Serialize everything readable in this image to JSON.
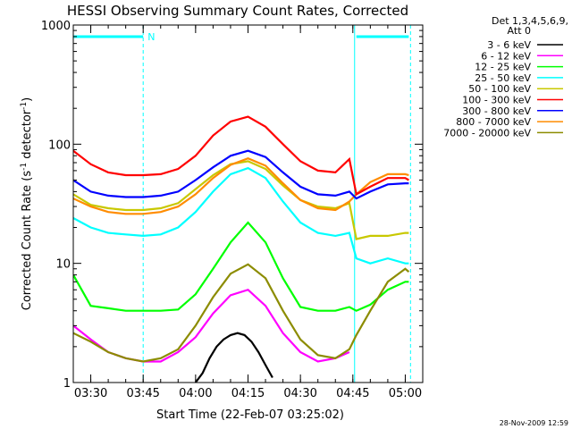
{
  "chart_data": {
    "type": "line",
    "title": "HESSI Observing Summary Count Rates, Corrected",
    "xlabel": "Start Time (22-Feb-07 03:25:02)",
    "ylabel": "Corrected Count Rate (s⁻¹ detector⁻¹)",
    "ylabel_parts": {
      "base": "Corrected Count Rate (s",
      "sup1": "-1",
      "mid": " detector",
      "sup2": "-1",
      "end": ")"
    },
    "yscale": "log",
    "ylim": [
      1,
      1000
    ],
    "xlim": [
      "03:25",
      "05:05"
    ],
    "xlim_minutes": [
      205,
      305
    ],
    "xticks": [
      "03:30",
      "03:45",
      "04:00",
      "04:15",
      "04:30",
      "04:45",
      "05:00"
    ],
    "xtick_minutes": [
      210,
      225,
      240,
      255,
      270,
      285,
      300
    ],
    "yticks": [
      "1",
      "10",
      "100",
      "1000"
    ],
    "ytick_values": [
      1,
      10,
      100,
      1000
    ],
    "legend_header": [
      "Det 1,3,4,5,6,9,",
      "Att 0"
    ],
    "legend_position": "right",
    "annotations": {
      "night_marker": "N",
      "timestamp": "28-Nov-2009 12:59",
      "night_bars": [
        {
          "start": "03:25",
          "end": "03:45"
        },
        {
          "start": "04:46",
          "end": "05:01"
        }
      ],
      "dashed_lines_minutes": [
        225,
        301.5
      ],
      "solid_lines_minutes": [
        285.5
      ]
    },
    "series": [
      {
        "name": "3 - 6 keV",
        "color": "#000000",
        "x": [
          "04:00",
          "04:02",
          "04:04",
          "04:06",
          "04:08",
          "04:10",
          "04:12",
          "04:14",
          "04:16",
          "04:18",
          "04:20",
          "04:22"
        ],
        "values": [
          1,
          1.2,
          1.6,
          2.0,
          2.3,
          2.5,
          2.6,
          2.5,
          2.2,
          1.8,
          1.4,
          1.1
        ]
      },
      {
        "name": "6 - 12 keV",
        "color": "#ff00ff",
        "x": [
          "03:25",
          "03:30",
          "03:35",
          "03:40",
          "03:45",
          "03:50",
          "03:55",
          "04:00",
          "04:05",
          "04:10",
          "04:15",
          "04:20",
          "04:25",
          "04:30",
          "04:35",
          "04:40",
          "04:44"
        ],
        "values": [
          3.0,
          2.3,
          1.8,
          1.6,
          1.5,
          1.5,
          1.8,
          2.4,
          3.8,
          5.4,
          6.0,
          4.4,
          2.6,
          1.8,
          1.5,
          1.6,
          1.8
        ]
      },
      {
        "name": "12 - 25 keV",
        "color": "#00ff00",
        "x": [
          "03:25",
          "03:30",
          "03:35",
          "03:40",
          "03:45",
          "03:50",
          "03:55",
          "04:00",
          "04:05",
          "04:10",
          "04:15",
          "04:20",
          "04:25",
          "04:30",
          "04:35",
          "04:40",
          "04:44",
          "04:46",
          "04:50",
          "04:55",
          "05:00",
          "05:01"
        ],
        "values": [
          8.0,
          4.4,
          4.2,
          4.0,
          4.0,
          4.0,
          4.1,
          5.5,
          9.0,
          15.0,
          22.0,
          15.0,
          7.5,
          4.3,
          4.0,
          4.0,
          4.3,
          4.0,
          4.5,
          6.0,
          7.0,
          7.0
        ]
      },
      {
        "name": "25 - 50 keV",
        "color": "#00ffff",
        "x": [
          "03:25",
          "03:30",
          "03:35",
          "03:40",
          "03:45",
          "03:50",
          "03:55",
          "04:00",
          "04:05",
          "04:10",
          "04:15",
          "04:20",
          "04:25",
          "04:30",
          "04:35",
          "04:40",
          "04:44",
          "04:46",
          "04:50",
          "04:55",
          "05:00",
          "05:01"
        ],
        "values": [
          24,
          20,
          18,
          17.5,
          17,
          17.5,
          20,
          27,
          40,
          56,
          63,
          52,
          33,
          22,
          18,
          17,
          18,
          11,
          10,
          11,
          10,
          10
        ]
      },
      {
        "name": "50 - 100 keV",
        "color": "#c8c800",
        "x": [
          "03:25",
          "03:30",
          "03:35",
          "03:40",
          "03:45",
          "03:50",
          "03:55",
          "04:00",
          "04:05",
          "04:10",
          "04:15",
          "04:20",
          "04:25",
          "04:30",
          "04:35",
          "04:40",
          "04:44",
          "04:46",
          "04:50",
          "04:55",
          "05:00",
          "05:01"
        ],
        "values": [
          38,
          31,
          29,
          28,
          28,
          29,
          32,
          42,
          55,
          68,
          72,
          62,
          45,
          34,
          30,
          29,
          32,
          16,
          17,
          17,
          18,
          18
        ]
      },
      {
        "name": "100 - 300 keV",
        "color": "#ff0000",
        "x": [
          "03:25",
          "03:30",
          "03:35",
          "03:40",
          "03:45",
          "03:50",
          "03:55",
          "04:00",
          "04:05",
          "04:10",
          "04:15",
          "04:20",
          "04:25",
          "04:30",
          "04:35",
          "04:40",
          "04:44",
          "04:46",
          "04:50",
          "04:55",
          "05:00",
          "05:01"
        ],
        "values": [
          88,
          68,
          58,
          55,
          55,
          56,
          62,
          80,
          118,
          155,
          170,
          140,
          100,
          72,
          60,
          58,
          75,
          38,
          44,
          52,
          52,
          50
        ]
      },
      {
        "name": "300 - 800 keV",
        "color": "#0000ff",
        "x": [
          "03:25",
          "03:30",
          "03:35",
          "03:40",
          "03:45",
          "03:50",
          "03:55",
          "04:00",
          "04:05",
          "04:10",
          "04:15",
          "04:20",
          "04:25",
          "04:30",
          "04:35",
          "04:40",
          "04:44",
          "04:46",
          "04:50",
          "04:55",
          "05:00",
          "05:01"
        ],
        "values": [
          50,
          40,
          37,
          36,
          36,
          37,
          40,
          50,
          64,
          80,
          88,
          78,
          58,
          44,
          38,
          37,
          40,
          35,
          40,
          46,
          47,
          47
        ]
      },
      {
        "name": "800 - 7000 keV",
        "color": "#ff8c00",
        "x": [
          "03:25",
          "03:30",
          "03:35",
          "03:40",
          "03:45",
          "03:50",
          "03:55",
          "04:00",
          "04:05",
          "04:10",
          "04:15",
          "04:20",
          "04:25",
          "04:30",
          "04:35",
          "04:40",
          "04:44",
          "04:46",
          "04:50",
          "04:55",
          "05:00",
          "05:01"
        ],
        "values": [
          35,
          30,
          27,
          26,
          26,
          27,
          30,
          38,
          52,
          67,
          76,
          66,
          47,
          34,
          29,
          28,
          33,
          38,
          48,
          56,
          56,
          55
        ]
      },
      {
        "name": "7000 - 20000 keV",
        "color": "#8c8c00",
        "x": [
          "03:25",
          "03:30",
          "03:35",
          "03:40",
          "03:45",
          "03:50",
          "03:55",
          "04:00",
          "04:05",
          "04:10",
          "04:15",
          "04:20",
          "04:25",
          "04:30",
          "04:35",
          "04:40",
          "04:44",
          "04:46",
          "04:50",
          "04:55",
          "05:00",
          "05:01"
        ],
        "values": [
          2.6,
          2.2,
          1.8,
          1.6,
          1.5,
          1.6,
          1.9,
          3.0,
          5.2,
          8.2,
          9.8,
          7.5,
          4.0,
          2.3,
          1.7,
          1.6,
          1.9,
          2.5,
          4.0,
          7.0,
          9.0,
          8.5
        ]
      }
    ]
  }
}
